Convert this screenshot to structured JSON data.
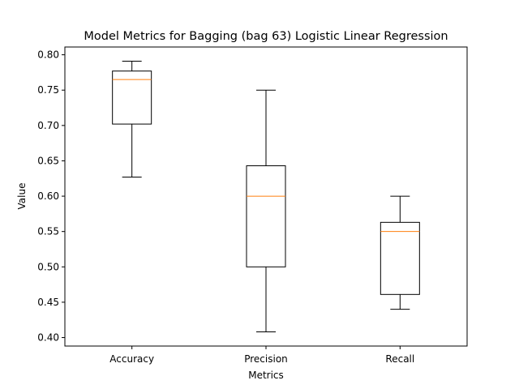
{
  "chart_data": {
    "type": "box",
    "title": "Model Metrics for Bagging (bag 63) Logistic Linear Regression",
    "xlabel": "Metrics",
    "ylabel": "Value",
    "ylim": [
      0.388,
      0.811
    ],
    "yticks": [
      "0.40",
      "0.45",
      "0.50",
      "0.55",
      "0.60",
      "0.65",
      "0.70",
      "0.75",
      "0.80"
    ],
    "categories": [
      "Accuracy",
      "Precision",
      "Recall"
    ],
    "boxes": [
      {
        "name": "Accuracy",
        "whisker_low": 0.627,
        "q1": 0.702,
        "median": 0.765,
        "q3": 0.777,
        "whisker_high": 0.791
      },
      {
        "name": "Precision",
        "whisker_low": 0.408,
        "q1": 0.5,
        "median": 0.6,
        "q3": 0.643,
        "whisker_high": 0.75
      },
      {
        "name": "Recall",
        "whisker_low": 0.44,
        "q1": 0.461,
        "median": 0.55,
        "q3": 0.563,
        "whisker_high": 0.6
      }
    ],
    "grid": false,
    "colors": {
      "box": "#000000",
      "median": "#ff7f0e"
    }
  }
}
